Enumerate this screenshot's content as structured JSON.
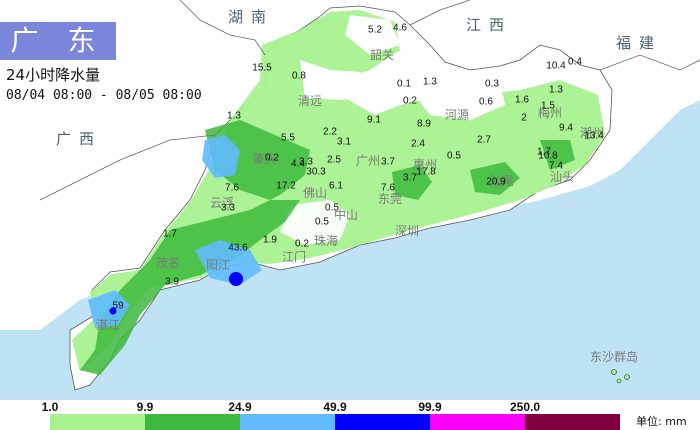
{
  "title": "广 东",
  "subtitle": "24小时降水量",
  "time_range": "08/04 08:00 - 08/05 08:00",
  "unit_label": "单位: mm",
  "region_labels": {
    "hunan": "湖南",
    "jiangxi": "江西",
    "fujian": "福建",
    "guangxi": "广西"
  },
  "city_labels": {
    "shaoguan": "韶关",
    "qingyuan": "清远",
    "heyuan": "河源",
    "meizhou": "梅州",
    "chaozhou": "潮州",
    "shantou": "汕头",
    "zhaoqing": "肇庆",
    "foshan": "佛山",
    "guangzhou": "广州",
    "huizhou": "惠州",
    "dongguan": "东莞",
    "shanwei": "汕尾",
    "yunfu": "云浮",
    "zhongshan": "中山",
    "shenzhen": "深圳",
    "zhuhai": "珠海",
    "jiangmen": "江门",
    "maoming": "茂名",
    "yangjiang": "阳江",
    "zhanjiang": "湛江",
    "dongsha": "东沙群岛"
  },
  "legend": {
    "ticks": [
      "1.0",
      "9.9",
      "24.9",
      "49.9",
      "99.9",
      "250.0"
    ],
    "colors": [
      "#a6f28f",
      "#3dba3d",
      "#61bbff",
      "#0000ff",
      "#fa00fa",
      "#800040"
    ]
  },
  "rain_values": [
    "5.2",
    "4.6",
    "15.5",
    "0.8",
    "0.1",
    "1.3",
    "0.4",
    "1.3",
    "0.3",
    "0.2",
    "0.6",
    "1.6",
    "1.5",
    "10.4",
    "2",
    "9.4",
    "13.4",
    "1.3",
    "5.5",
    "2.2",
    "3.1",
    "9.1",
    "2.4",
    "8.9",
    "0.5",
    "2.7",
    "1.7",
    "0.2",
    "3.3",
    "4.4",
    "30.3",
    "2.5",
    "3.7",
    "17.8",
    "3.7",
    "10.8",
    "7.4",
    "7.6",
    "17.2",
    "6.1",
    "7.6",
    "20.9",
    "3.3",
    "0.5",
    "0.5",
    "1.7",
    "1.9",
    "0.2",
    "43.6",
    "3.9",
    "59"
  ]
}
